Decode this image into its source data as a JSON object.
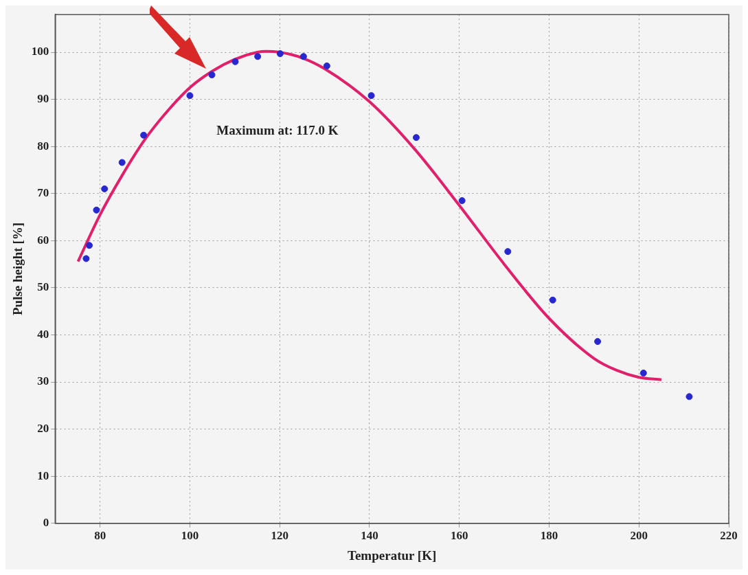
{
  "chart_data": {
    "type": "scatter",
    "xlabel": "Temperatur [K]",
    "ylabel": "Pulse height [%]",
    "annotations": [
      "Maximum at: 117.0 K"
    ],
    "series": [
      {
        "color": "#2828d0",
        "marker": "circle",
        "x": [
          76.9,
          77.6,
          79.2,
          81.0,
          84.9,
          89.7,
          100,
          104.9,
          110.1,
          115.1,
          120.1,
          125.3,
          130.5,
          140.4,
          150.4,
          160.6,
          170.8,
          180.8,
          190.8,
          201.0,
          211.2
        ],
        "values": [
          56.2,
          59.0,
          66.5,
          71.0,
          76.6,
          82.4,
          90.8,
          95.2,
          98.0,
          99.1,
          99.7,
          99.1,
          97.1,
          90.8,
          81.9,
          68.5,
          57.7,
          47.4,
          38.6,
          31.9,
          26.9
        ]
      },
      {
        "type": "line",
        "color": "#e0206a",
        "marker": "none",
        "x": [
          75.1,
          80,
          85,
          90,
          95,
          100,
          105,
          110,
          115,
          117,
          120,
          125,
          130,
          140,
          150,
          160,
          170,
          180,
          190,
          195,
          200,
          205
        ],
        "values": [
          55.6,
          65.5,
          74,
          81.5,
          87.5,
          92.5,
          96,
          98.5,
          100,
          100.2,
          100,
          98.8,
          96.5,
          89.5,
          79.5,
          67.5,
          55,
          43.5,
          35,
          32.5,
          31,
          30.5
        ]
      }
    ],
    "xlim": [
      70,
      220
    ],
    "xticks": [
      80,
      100,
      120,
      140,
      160,
      180,
      200,
      220
    ],
    "ylim": [
      0,
      108
    ],
    "yticks": [
      0,
      10,
      20,
      30,
      40,
      50,
      60,
      70,
      80,
      90,
      100
    ],
    "grid": true,
    "legend": false,
    "line_style": "solid"
  }
}
